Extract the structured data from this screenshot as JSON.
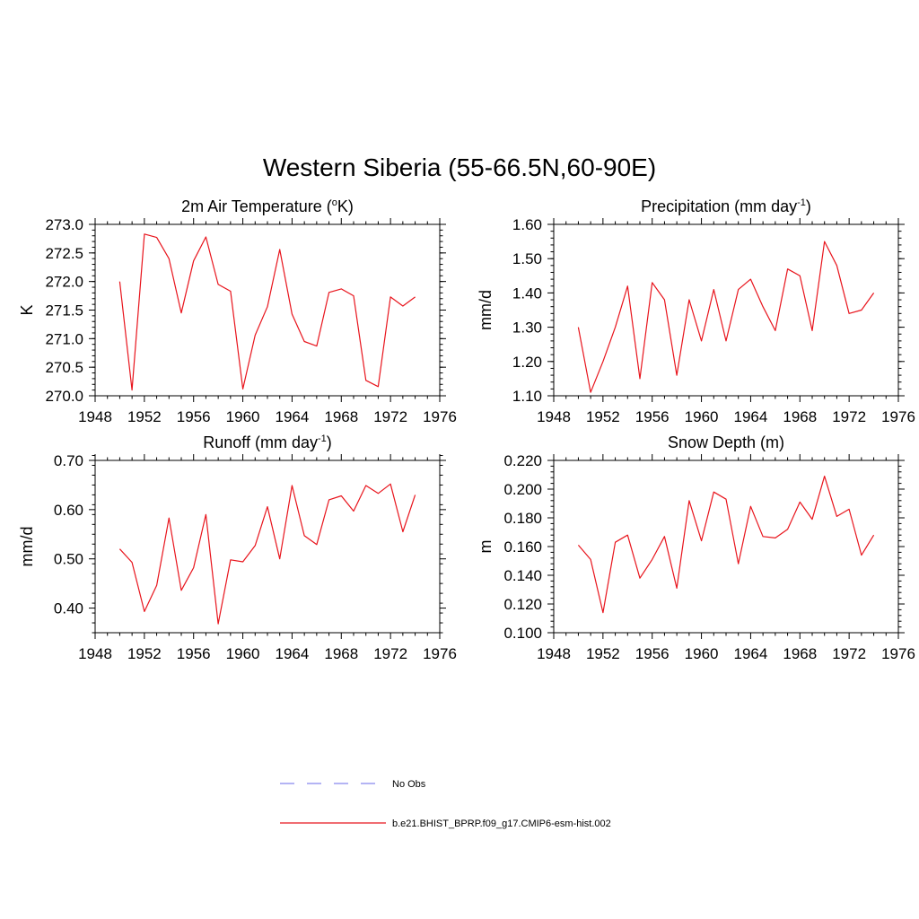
{
  "title": "Western Siberia (55-66.5N,60-90E)",
  "colors": {
    "model_line": "#e8141c",
    "obs_line": "#9c9cf0",
    "axis": "#000000"
  },
  "legend": {
    "obs_label": "No Obs",
    "model_label": "b.e21.BHIST_BPRP.f09_g17.CMIP6-esm-hist.002"
  },
  "chart_data": [
    {
      "type": "line",
      "title": "2m Air Temperature (°K)",
      "title_main": "2m Air Temperature (",
      "title_sup": "o",
      "title_tail": "K)",
      "ylabel": "K",
      "xlim": [
        1948,
        1976
      ],
      "ylim": [
        270.0,
        273.0
      ],
      "xticks": [
        1948,
        1952,
        1956,
        1960,
        1964,
        1968,
        1972,
        1976
      ],
      "yticks": [
        "270.0",
        "270.5",
        "271.0",
        "271.5",
        "272.0",
        "272.5",
        "273.0"
      ],
      "grid": false,
      "x": [
        1950,
        1951,
        1952,
        1953,
        1954,
        1955,
        1956,
        1957,
        1958,
        1959,
        1960,
        1961,
        1962,
        1963,
        1964,
        1965,
        1966,
        1967,
        1968,
        1969,
        1970,
        1971,
        1972,
        1973,
        1974
      ],
      "series": [
        {
          "values": [
            272.0,
            270.1,
            272.83,
            272.77,
            272.4,
            271.45,
            272.36,
            272.78,
            271.95,
            271.83,
            270.12,
            271.06,
            271.56,
            272.56,
            271.43,
            270.95,
            270.87,
            271.81,
            271.87,
            271.75,
            270.27,
            270.16,
            271.73,
            271.57,
            271.73
          ]
        }
      ]
    },
    {
      "type": "line",
      "title": "Precipitation (mm day-1)",
      "title_main": "Precipitation (mm day",
      "title_sup": "-1",
      "title_tail": ")",
      "ylabel": "mm/d",
      "xlim": [
        1948,
        1976
      ],
      "ylim": [
        1.1,
        1.6
      ],
      "xticks": [
        1948,
        1952,
        1956,
        1960,
        1964,
        1968,
        1972,
        1976
      ],
      "yticks": [
        "1.10",
        "1.20",
        "1.30",
        "1.40",
        "1.50",
        "1.60"
      ],
      "grid": false,
      "x": [
        1950,
        1951,
        1952,
        1953,
        1954,
        1955,
        1956,
        1957,
        1958,
        1959,
        1960,
        1961,
        1962,
        1963,
        1964,
        1965,
        1966,
        1967,
        1968,
        1969,
        1970,
        1971,
        1972,
        1973,
        1974
      ],
      "series": [
        {
          "values": [
            1.3,
            1.11,
            1.2,
            1.3,
            1.42,
            1.15,
            1.43,
            1.38,
            1.16,
            1.38,
            1.26,
            1.41,
            1.26,
            1.41,
            1.44,
            1.36,
            1.29,
            1.47,
            1.45,
            1.29,
            1.55,
            1.48,
            1.34,
            1.35,
            1.4
          ]
        }
      ]
    },
    {
      "type": "line",
      "title": "Runoff (mm day-1)",
      "title_main": "Runoff (mm day",
      "title_sup": "-1",
      "title_tail": ")",
      "ylabel": "mm/d",
      "xlim": [
        1948,
        1976
      ],
      "ylim": [
        0.35,
        0.7
      ],
      "xticks": [
        1948,
        1952,
        1956,
        1960,
        1964,
        1968,
        1972,
        1976
      ],
      "yticks": [
        "0.40",
        "0.50",
        "0.60",
        "0.70"
      ],
      "ytick_values": [
        0.4,
        0.5,
        0.6,
        0.7
      ],
      "grid": false,
      "x": [
        1950,
        1951,
        1952,
        1953,
        1954,
        1955,
        1956,
        1957,
        1958,
        1959,
        1960,
        1961,
        1962,
        1963,
        1964,
        1965,
        1966,
        1967,
        1968,
        1969,
        1970,
        1971,
        1972,
        1973,
        1974
      ],
      "series": [
        {
          "values": [
            0.52,
            0.493,
            0.393,
            0.446,
            0.583,
            0.436,
            0.482,
            0.59,
            0.368,
            0.498,
            0.494,
            0.527,
            0.606,
            0.5,
            0.649,
            0.547,
            0.529,
            0.62,
            0.628,
            0.597,
            0.649,
            0.633,
            0.652,
            0.555,
            0.63
          ]
        }
      ]
    },
    {
      "type": "line",
      "title": "Snow Depth (m)",
      "title_main": "Snow Depth (m)",
      "title_sup": "",
      "title_tail": "",
      "ylabel": "m",
      "xlim": [
        1948,
        1976
      ],
      "ylim": [
        0.1,
        0.22
      ],
      "xticks": [
        1948,
        1952,
        1956,
        1960,
        1964,
        1968,
        1972,
        1976
      ],
      "yticks": [
        "0.100",
        "0.120",
        "0.140",
        "0.160",
        "0.180",
        "0.200",
        "0.220"
      ],
      "grid": false,
      "x": [
        1950,
        1951,
        1952,
        1953,
        1954,
        1955,
        1956,
        1957,
        1958,
        1959,
        1960,
        1961,
        1962,
        1963,
        1964,
        1965,
        1966,
        1967,
        1968,
        1969,
        1970,
        1971,
        1972,
        1973,
        1974
      ],
      "series": [
        {
          "values": [
            0.161,
            0.151,
            0.114,
            0.163,
            0.168,
            0.138,
            0.151,
            0.167,
            0.131,
            0.192,
            0.164,
            0.198,
            0.193,
            0.148,
            0.188,
            0.167,
            0.166,
            0.172,
            0.191,
            0.179,
            0.209,
            0.181,
            0.186,
            0.154,
            0.168
          ]
        }
      ]
    }
  ]
}
